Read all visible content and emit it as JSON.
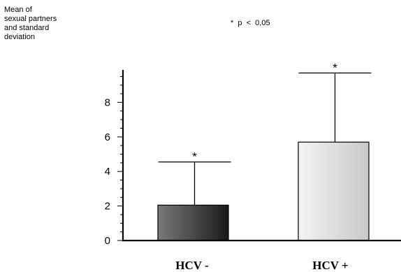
{
  "chart_data": {
    "type": "bar",
    "ylabel_lines": [
      "Mean of",
      "sexual partners",
      "and standard",
      "deviation"
    ],
    "note": "*  p  <  0,05",
    "categories": [
      "HCV -",
      "HCV +"
    ],
    "values": [
      2.05,
      5.7
    ],
    "error_upper": [
      4.55,
      9.7
    ],
    "significance": [
      "*",
      "*"
    ],
    "bar_colors": [
      [
        "#7a7a7a",
        "#1a1a1a"
      ],
      [
        "#f4f4f4",
        "#c8c8c8"
      ]
    ],
    "ylim": [
      0,
      10
    ],
    "yticks": [
      0,
      2,
      4,
      6,
      8
    ],
    "grid": false
  }
}
